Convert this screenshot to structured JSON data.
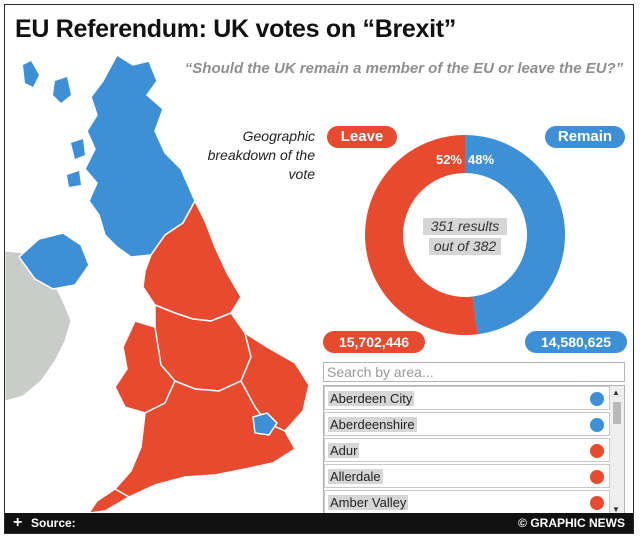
{
  "title": "EU Referendum: UK votes on “Brexit”",
  "question": "“Should the UK remain a member of the EU or leave the EU?”",
  "geo_caption": "Geographic breakdown of the vote",
  "colors": {
    "leave": "#e84a2f",
    "remain": "#3d8fd6",
    "ireland": "#c9ccc8"
  },
  "chart_data": {
    "type": "pie",
    "style": "donut",
    "slices": [
      {
        "label": "Leave",
        "percent": 52,
        "votes": "15,702,446",
        "color": "#e84a2f"
      },
      {
        "label": "Remain",
        "percent": 48,
        "votes": "14,580,625",
        "color": "#3d8fd6"
      }
    ],
    "center_text": [
      "351 results",
      "out of 382"
    ],
    "legend": "top"
  },
  "search": {
    "placeholder": "Search by area..."
  },
  "areas": [
    {
      "name": "Aberdeen City",
      "result": "remain"
    },
    {
      "name": "Aberdeenshire",
      "result": "remain"
    },
    {
      "name": "Adur",
      "result": "leave"
    },
    {
      "name": "Allerdale",
      "result": "leave"
    },
    {
      "name": "Amber Valley",
      "result": "leave"
    }
  ],
  "map_regions": {
    "scotland": "remain",
    "northern_ireland": "remain",
    "london": "remain",
    "england_regions": "leave",
    "wales": "leave"
  },
  "footer": {
    "expand_icon": "+",
    "source": "Source:",
    "credit": "© GRAPHIC NEWS"
  }
}
